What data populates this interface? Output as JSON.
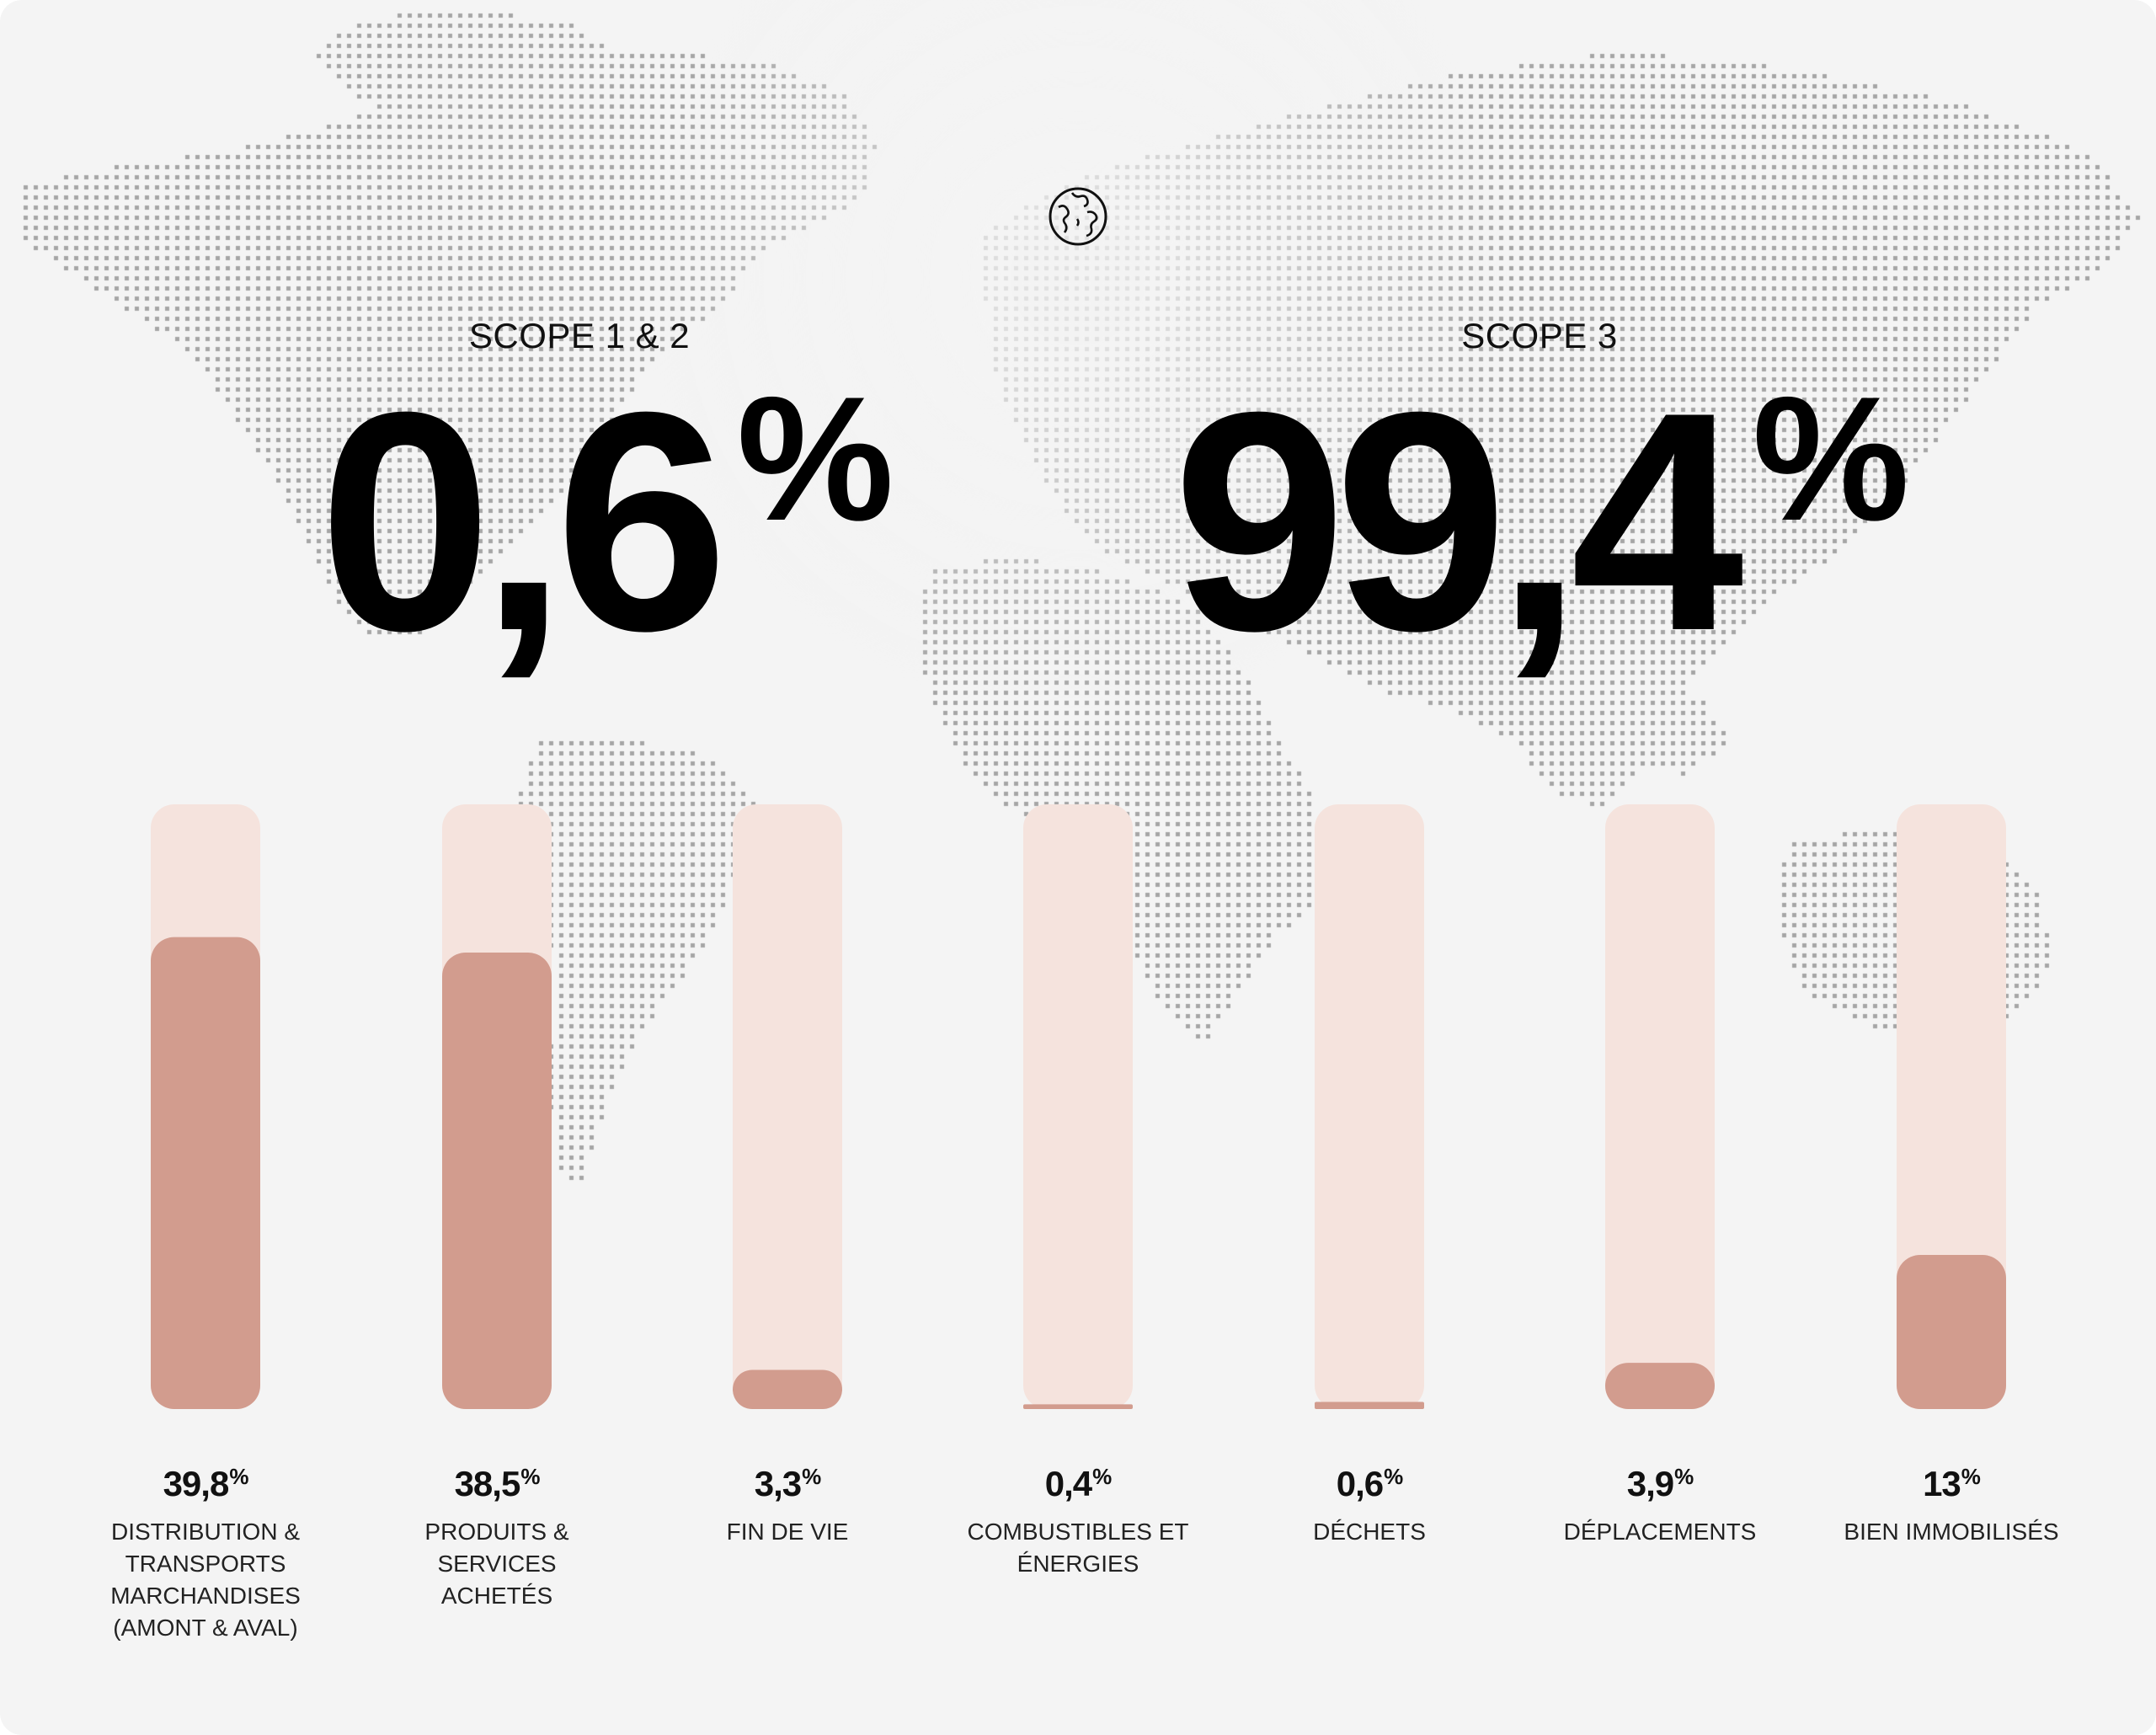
{
  "scopes": [
    {
      "label": "SCOPE 1 & 2",
      "value": "0,6",
      "unit": "%"
    },
    {
      "label": "SCOPE 3",
      "value": "99,4",
      "unit": "%"
    }
  ],
  "icons": {
    "globe": "globe-icon"
  },
  "colors": {
    "background": "#f4f4f4",
    "bar_track": "#f5e3dd",
    "bar_fill": "#d29c8e",
    "map_dots": "#a6a6a6",
    "text": "#000000"
  },
  "chart_data": {
    "type": "bar",
    "categories": [
      "DISTRIBUTION & TRANSPORTS MARCHANDISES (AMONT & AVAL)",
      "PRODUITS & SERVICES ACHETÉS",
      "FIN DE VIE",
      "COMBUSTIBLES ET ÉNERGIES",
      "DÉCHETS",
      "DÉPLACEMENTS",
      "BIEN IMMOBILISÉS"
    ],
    "values": [
      39.8,
      38.5,
      3.3,
      0.4,
      0.6,
      3.9,
      13
    ],
    "value_labels": [
      "39,8",
      "38,5",
      "3,3",
      "0,4",
      "0,6",
      "3,9",
      "13"
    ],
    "unit": "%",
    "ylim": [
      0,
      51
    ],
    "grid": false
  }
}
